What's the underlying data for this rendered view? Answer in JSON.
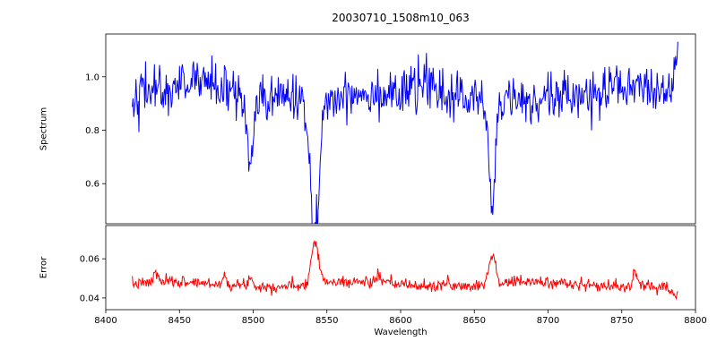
{
  "figure": {
    "title": "20030710_1508m10_063",
    "xlabel": "Wavelength",
    "top_ylabel": "Spectrum",
    "bottom_ylabel": "Error"
  },
  "chart_data": [
    {
      "type": "line",
      "series_name": "spectrum",
      "title": "20030710_1508m10_063",
      "xlabel": "Wavelength",
      "ylabel": "Spectrum",
      "color": "#0000ff",
      "grid": false,
      "legend": null,
      "xlim": [
        8400,
        8800
      ],
      "ylim": [
        0.45,
        1.16
      ],
      "yticks": [
        0.6,
        0.8,
        1.0
      ],
      "ytick_labels": [
        "0.6",
        "0.8",
        "1.0"
      ],
      "x_start": 8418,
      "x_end": 8788,
      "x_step": 0.5,
      "baseline": 0.93,
      "noise_sigma": 0.045,
      "seed": 42,
      "wiggles": [
        {
          "amp": 0.02,
          "period": 150
        },
        {
          "amp": 0.012,
          "period": 47
        }
      ],
      "features": [
        {
          "center": 8460,
          "amplitude": 0.05,
          "sigma": 8
        },
        {
          "center": 8498,
          "amplitude": -0.27,
          "sigma": 2.0
        },
        {
          "center": 8542,
          "amplitude": -0.49,
          "sigma": 2.8
        },
        {
          "center": 8662,
          "amplitude": -0.39,
          "sigma": 2.4
        },
        {
          "center": 8787,
          "amplitude": 0.17,
          "sigma": 1.5
        }
      ],
      "note": "Noisy stellar spectrum near continuum 0.9-1.0 with absorption dips at ~8498, ~8542 (deepest, to ~0.46) and ~8662"
    },
    {
      "type": "line",
      "series_name": "error",
      "ylabel": "Error",
      "color": "#ff0000",
      "grid": false,
      "legend": null,
      "xlim": [
        8400,
        8800
      ],
      "ylim": [
        0.034,
        0.077
      ],
      "yticks": [
        0.04,
        0.06
      ],
      "ytick_labels": [
        "0.04",
        "0.06"
      ],
      "xticks": [
        8400,
        8450,
        8500,
        8550,
        8600,
        8650,
        8700,
        8750,
        8800
      ],
      "x_start": 8418,
      "x_end": 8788,
      "x_step": 0.5,
      "baseline": 0.047,
      "noise_sigma": 0.0015,
      "seed": 7,
      "wiggles": [
        {
          "amp": 0.0012,
          "period": 120
        }
      ],
      "features": [
        {
          "center": 8434,
          "amplitude": 0.005,
          "sigma": 1.5
        },
        {
          "center": 8481,
          "amplitude": 0.004,
          "sigma": 1.5
        },
        {
          "center": 8498,
          "amplitude": 0.004,
          "sigma": 2.0
        },
        {
          "center": 8542,
          "amplitude": 0.022,
          "sigma": 2.5
        },
        {
          "center": 8585,
          "amplitude": 0.004,
          "sigma": 1.5
        },
        {
          "center": 8632,
          "amplitude": 0.003,
          "sigma": 1.5
        },
        {
          "center": 8662,
          "amplitude": 0.015,
          "sigma": 2.2
        },
        {
          "center": 8759,
          "amplitude": 0.007,
          "sigma": 1.2
        },
        {
          "center": 8786,
          "amplitude": -0.005,
          "sigma": 4.0
        }
      ],
      "note": "Error array ~0.045-0.05 with spikes to ~0.07 at 8542 and ~0.065 at 8662"
    }
  ]
}
